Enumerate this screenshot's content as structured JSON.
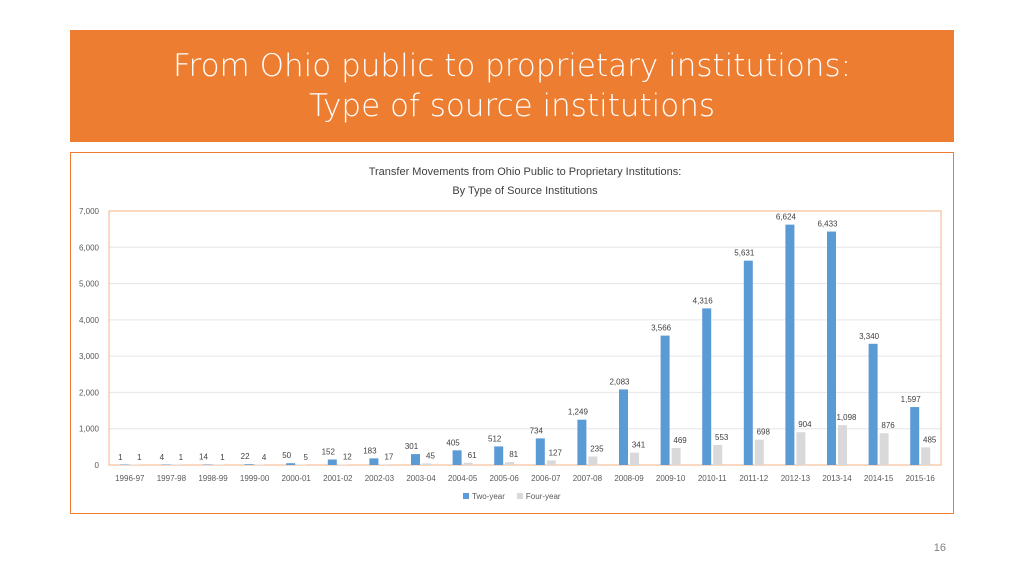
{
  "slide": {
    "title_line1": "From Ohio public to proprietary institutions:",
    "title_line2": "Type of source institutions",
    "page_number": "16",
    "accent_color": "#ED7D31"
  },
  "chart_data": {
    "type": "bar",
    "title": "Transfer Movements from Ohio Public to Proprietary Institutions:",
    "subtitle": "By Type of Source Institutions",
    "xlabel": "",
    "ylabel": "",
    "ylim": [
      0,
      7000
    ],
    "yticks": [
      "0",
      "1,000",
      "2,000",
      "3,000",
      "4,000",
      "5,000",
      "6,000",
      "7,000"
    ],
    "grid": true,
    "legend_position": "bottom",
    "categories": [
      "1996-97",
      "1997-98",
      "1998-99",
      "1999-00",
      "2000-01",
      "2001-02",
      "2002-03",
      "2003-04",
      "2004-05",
      "2005-06",
      "2006-07",
      "2007-08",
      "2008-09",
      "2009-10",
      "2010-11",
      "2011-12",
      "2012-13",
      "2013-14",
      "2014-15",
      "2015-16"
    ],
    "series": [
      {
        "name": "Two-year",
        "color": "#5B9BD5",
        "values": [
          1,
          4,
          14,
          22,
          50,
          152,
          183,
          301,
          405,
          512,
          734,
          1249,
          2083,
          3566,
          4316,
          5631,
          6624,
          6433,
          3340,
          1597
        ],
        "labels": [
          "1",
          "4",
          "14",
          "22",
          "50",
          "152",
          "183",
          "301",
          "405",
          "512",
          "734",
          "1,249",
          "2,083",
          "3,566",
          "4,316",
          "5,631",
          "6,624",
          "6,433",
          "3,340",
          "1,597"
        ]
      },
      {
        "name": "Four-year",
        "color": "#D9D9D9",
        "values": [
          1,
          1,
          1,
          4,
          5,
          12,
          17,
          45,
          61,
          81,
          127,
          235,
          341,
          469,
          553,
          698,
          904,
          1098,
          876,
          485
        ],
        "labels": [
          "1",
          "1",
          "1",
          "4",
          "5",
          "12",
          "17",
          "45",
          "61",
          "81",
          "127",
          "235",
          "341",
          "469",
          "553",
          "698",
          "904",
          "1,098",
          "876",
          "485"
        ]
      }
    ]
  }
}
